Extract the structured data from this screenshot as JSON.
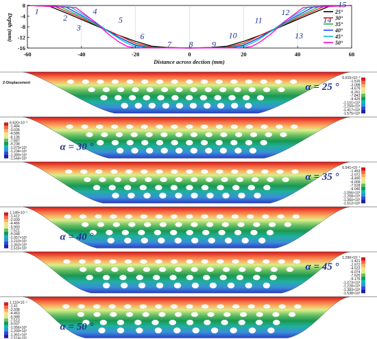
{
  "chart_data": [
    {
      "type": "line",
      "title": "",
      "xlabel": "Distance across dection (mm)",
      "ylabel": "Depth (mm)",
      "xlim": [
        -60,
        60
      ],
      "ylim": [
        -16,
        0
      ],
      "xticks": [
        "-60",
        "-40",
        "-20",
        "0",
        "20",
        "40",
        "60"
      ],
      "yticks": [
        "0",
        "-4",
        "-8",
        "-12",
        "-16"
      ],
      "grid": false,
      "legend_position": "top-right",
      "series": [
        {
          "name": "25°",
          "color": "#000000",
          "x": [
            -60,
            -52,
            -44,
            -36,
            -28,
            -20,
            -14,
            -8,
            0,
            8,
            14,
            20,
            28,
            36,
            44,
            52,
            60
          ],
          "y": [
            0,
            -0.2,
            -3.5,
            -7,
            -10.5,
            -13.5,
            -15.3,
            -15.8,
            -16,
            -15.8,
            -15.3,
            -13.5,
            -10.5,
            -7,
            -3.5,
            -0.2,
            0
          ]
        },
        {
          "name": "30°",
          "color": "#e31a1c",
          "x": [
            -60,
            -50,
            -42,
            -34,
            -26,
            -20,
            -14,
            0,
            14,
            20,
            26,
            34,
            42,
            50,
            60
          ],
          "y": [
            0,
            -0.3,
            -3.8,
            -7.6,
            -11.3,
            -14.2,
            -15.7,
            -16,
            -15.7,
            -14.2,
            -11.3,
            -7.6,
            -3.8,
            -0.3,
            0
          ]
        },
        {
          "name": "35°",
          "color": "#22b14c",
          "x": [
            -60,
            -48,
            -40,
            -33,
            -26,
            -20,
            -15,
            0,
            15,
            20,
            26,
            33,
            40,
            48,
            60
          ],
          "y": [
            0,
            -0.4,
            -4.2,
            -8.2,
            -12,
            -14.8,
            -15.8,
            -16,
            -15.8,
            -14.8,
            -12,
            -8.2,
            -4.2,
            -0.4,
            0
          ]
        },
        {
          "name": "40°",
          "color": "#1f3fff",
          "x": [
            -60,
            -46,
            -38,
            -31,
            -25,
            -20,
            -16,
            0,
            16,
            20,
            25,
            31,
            38,
            46,
            60
          ],
          "y": [
            0,
            -0.5,
            -4.8,
            -9,
            -12.6,
            -15,
            -15.8,
            -16,
            -15.8,
            -15,
            -12.6,
            -9,
            -4.8,
            -0.5,
            0
          ]
        },
        {
          "name": "45°",
          "color": "#00bcd4",
          "x": [
            -60,
            -44,
            -36,
            -30,
            -25,
            -21,
            -18,
            0,
            18,
            21,
            25,
            30,
            36,
            44,
            60
          ],
          "y": [
            0,
            -0.6,
            -5.4,
            -9.8,
            -13.2,
            -15.2,
            -15.9,
            -16,
            -15.9,
            -15.2,
            -13.2,
            -9.8,
            -5.4,
            -0.6,
            0
          ]
        },
        {
          "name": "50°",
          "color": "#ff00cc",
          "x": [
            -60,
            -42,
            -35,
            -30,
            -26,
            -23,
            -20,
            0,
            20,
            23,
            26,
            30,
            35,
            42,
            60
          ],
          "y": [
            0,
            -0.8,
            -6.2,
            -10.8,
            -13.8,
            -15.4,
            -15.9,
            -16,
            -15.9,
            -15.4,
            -13.8,
            -10.8,
            -6.2,
            -0.8,
            0
          ]
        }
      ],
      "annotations": [
        {
          "text": "1",
          "x": -56.5,
          "y": -2.2
        },
        {
          "text": "2",
          "x": -46,
          "y": -4.6
        },
        {
          "text": "3",
          "x": -41,
          "y": -8.4
        },
        {
          "text": "4",
          "x": -35,
          "y": -2.2
        },
        {
          "text": "5",
          "x": -25.5,
          "y": -5.4
        },
        {
          "text": "6",
          "x": -17.5,
          "y": -11.6
        },
        {
          "text": "7",
          "x": -7.5,
          "y": -14.6
        },
        {
          "text": "8",
          "x": 0.5,
          "y": -14.6
        },
        {
          "text": "9",
          "x": 9,
          "y": -14.6
        },
        {
          "text": "10",
          "x": 16,
          "y": -11.2
        },
        {
          "text": "11",
          "x": 25.5,
          "y": -5.6
        },
        {
          "text": "12",
          "x": 35.5,
          "y": -2.6
        },
        {
          "text": "13",
          "x": 40.5,
          "y": -11.4
        },
        {
          "text": "14",
          "x": 51,
          "y": -5.4
        },
        {
          "text": "15",
          "x": 56.5,
          "y": 0.4
        }
      ]
    },
    {
      "type": "heatmap",
      "title": "Z-Displacement",
      "panels": [
        {
          "angle_label": "α = 25 °",
          "colorbar_side": "right",
          "ticks": [
            "6.615×10⁻²",
            "-1.516",
            "-3.098",
            "-4.679",
            "-6.261",
            "-7.843",
            "-9.425",
            "-1.101×10¹",
            "-1.259×10¹",
            "-1.417×10¹",
            "-1.575×10¹"
          ]
        },
        {
          "angle_label": "α = 30 °",
          "colorbar_side": "left",
          "ticks": [
            "6.620×10⁻²",
            "-1.484",
            "-3.035",
            "-4.586",
            "-6.136",
            "-7.687",
            "-9.238",
            "-1.079×10¹",
            "-1.234×10¹",
            "-1.389×10¹",
            "-1.544×10¹"
          ]
        },
        {
          "angle_label": "α = 35 °",
          "colorbar_side": "right",
          "ticks": [
            "6.541×10⁻²",
            "-1.453",
            "-2.972",
            "-4.490",
            "-6.009",
            "-7.528",
            "-9.046",
            "-1.056×10¹",
            "-1.208×10¹",
            "-1.360×10¹",
            "-1.512×10¹"
          ]
        },
        {
          "angle_label": "α = 40 °",
          "colorbar_side": "left",
          "ticks": [
            "1.149×10⁻¹",
            "-1.412",
            "-2.939",
            "-4.466",
            "-5.993",
            "-7.521",
            "-9.048",
            "-1.057×10¹",
            "-1.210×10¹",
            "-1.363×10¹",
            "-1.516×10¹"
          ]
        },
        {
          "angle_label": "α = 45 °",
          "colorbar_side": "right",
          "ticks": [
            "1.296×10⁻¹",
            "-1.421",
            "-2.972",
            "-4.523",
            "-6.074",
            "-7.625",
            "-9.176",
            "-1.073×10¹",
            "-1.228×10¹",
            "-1.383×10¹",
            "-1.538×10¹"
          ]
        },
        {
          "angle_label": "α = 50 °",
          "colorbar_side": "left",
          "ticks": [
            "1.110×10⁻¹",
            "-1.41",
            "-2.938",
            "-4.463",
            "-5.988",
            "-7.513",
            "-9.037",
            "-1.056×10¹",
            "-1.209×10¹",
            "-1.361×10¹",
            "-1.514×10¹"
          ]
        }
      ],
      "colormap": [
        "#d7191c",
        "#f46d43",
        "#fdae61",
        "#fee08b",
        "#d9ef8b",
        "#66bd63",
        "#1a9850",
        "#00c0c0",
        "#3a8fd8",
        "#2b4fd6",
        "#2020a8"
      ]
    }
  ]
}
